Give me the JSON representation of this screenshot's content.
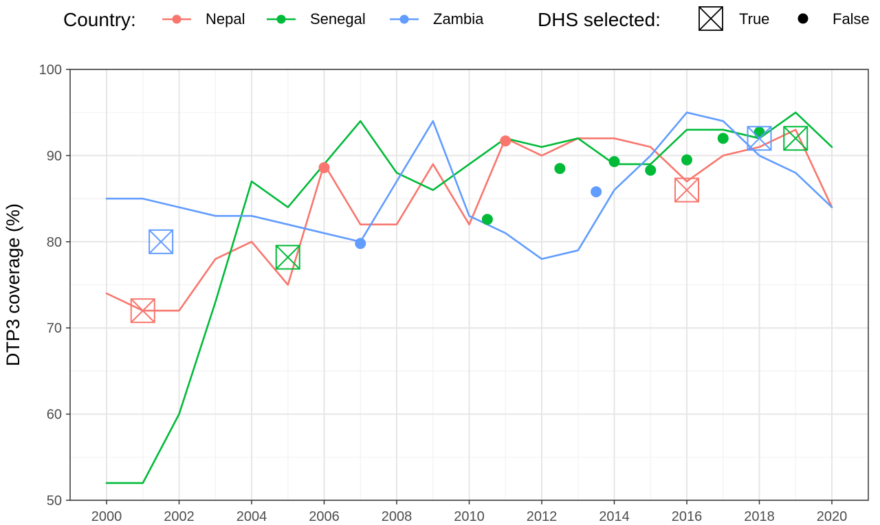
{
  "legend": {
    "country_title": "Country:",
    "countries": [
      {
        "name": "Nepal",
        "color": "#F8766D"
      },
      {
        "name": "Senegal",
        "color": "#00BA38"
      },
      {
        "name": "Zambia",
        "color": "#619CFF"
      }
    ],
    "dhs_title": "DHS selected:",
    "dhs_true": "True",
    "dhs_false": "False"
  },
  "chart_data": {
    "type": "line",
    "ylabel": "DTP3 coverage (%)",
    "xlabel": "",
    "xlim": [
      2000,
      2020
    ],
    "ylim": [
      50,
      100
    ],
    "x_ticks": [
      "2000",
      "2002",
      "2004",
      "2006",
      "2008",
      "2010",
      "2012",
      "2014",
      "2016",
      "2018",
      "2020"
    ],
    "y_ticks": [
      "50",
      "60",
      "70",
      "80",
      "90",
      "100"
    ],
    "grid": true,
    "legend_position": "top",
    "series": [
      {
        "name": "Nepal",
        "color": "#F8766D",
        "x": [
          2000,
          2001,
          2002,
          2003,
          2004,
          2005,
          2006,
          2007,
          2008,
          2009,
          2010,
          2011,
          2012,
          2013,
          2014,
          2015,
          2016,
          2017,
          2018,
          2019,
          2020
        ],
        "values": [
          74,
          72,
          72,
          78,
          80,
          75,
          89,
          82,
          82,
          89,
          82,
          92,
          90,
          92,
          92,
          91,
          87,
          90,
          91,
          93,
          84
        ],
        "dhs_points": [
          {
            "x": 2001,
            "y": 72,
            "selected": true
          },
          {
            "x": 2006,
            "y": 88.6,
            "selected": false
          },
          {
            "x": 2011,
            "y": 91.7,
            "selected": false
          },
          {
            "x": 2016,
            "y": 86,
            "selected": true
          }
        ]
      },
      {
        "name": "Senegal",
        "color": "#00BA38",
        "x": [
          2000,
          2001,
          2002,
          2003,
          2004,
          2005,
          2006,
          2007,
          2008,
          2009,
          2010,
          2011,
          2012,
          2013,
          2014,
          2015,
          2016,
          2017,
          2018,
          2019,
          2020
        ],
        "values": [
          52,
          52,
          60,
          73,
          87,
          84,
          89,
          94,
          88,
          86,
          89,
          92,
          91,
          92,
          89,
          89,
          93,
          93,
          92,
          95,
          91
        ],
        "dhs_points": [
          {
            "x": 2005,
            "y": 78.2,
            "selected": true
          },
          {
            "x": 2010.5,
            "y": 82.6,
            "selected": false
          },
          {
            "x": 2012.5,
            "y": 88.5,
            "selected": false
          },
          {
            "x": 2014,
            "y": 89.3,
            "selected": false
          },
          {
            "x": 2015,
            "y": 88.3,
            "selected": false
          },
          {
            "x": 2016,
            "y": 89.5,
            "selected": false
          },
          {
            "x": 2017,
            "y": 92,
            "selected": false
          },
          {
            "x": 2018,
            "y": 92.7,
            "selected": false
          },
          {
            "x": 2019,
            "y": 92,
            "selected": true
          }
        ]
      },
      {
        "name": "Zambia",
        "color": "#619CFF",
        "x": [
          2000,
          2001,
          2002,
          2003,
          2004,
          2005,
          2006,
          2007,
          2008,
          2009,
          2010,
          2011,
          2012,
          2013,
          2014,
          2015,
          2016,
          2017,
          2018,
          2019,
          2020
        ],
        "values": [
          85,
          85,
          84,
          83,
          83,
          82,
          81,
          80,
          87,
          94,
          83,
          81,
          78,
          79,
          86,
          90,
          95,
          94,
          90,
          88,
          84
        ],
        "dhs_points": [
          {
            "x": 2001.5,
            "y": 80,
            "selected": true
          },
          {
            "x": 2007,
            "y": 79.8,
            "selected": false
          },
          {
            "x": 2013.5,
            "y": 85.8,
            "selected": false
          },
          {
            "x": 2018,
            "y": 92,
            "selected": true
          }
        ]
      }
    ]
  }
}
